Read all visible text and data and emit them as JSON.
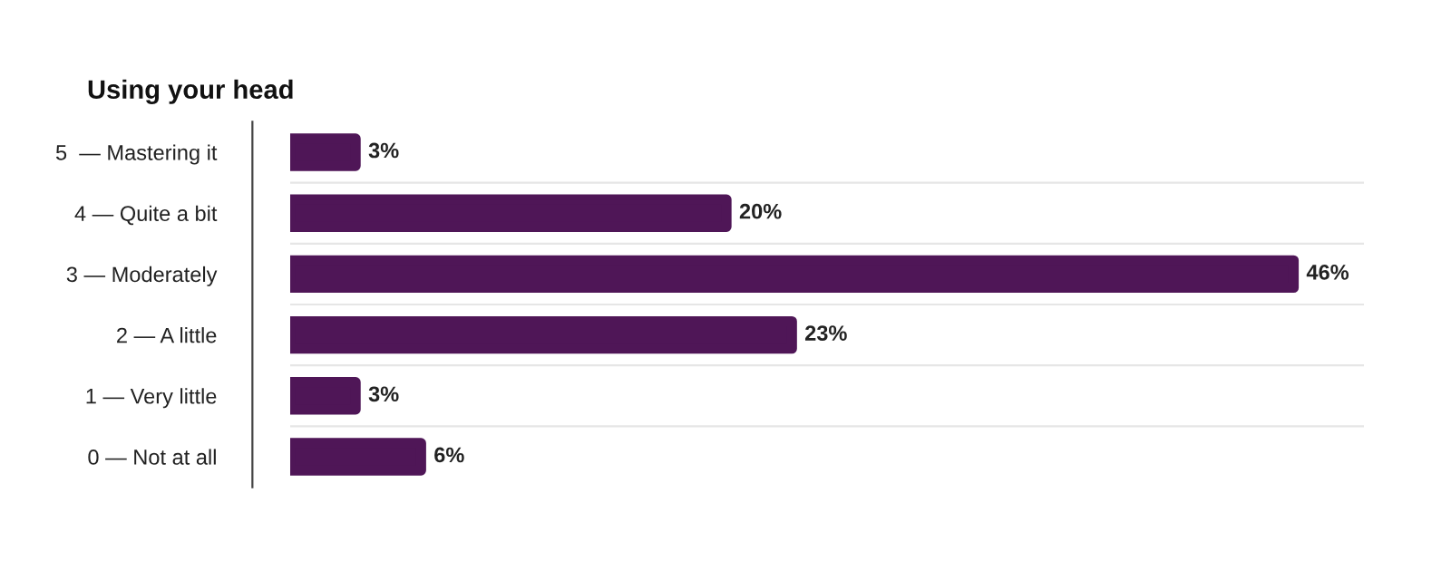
{
  "chart_data": {
    "type": "bar",
    "orientation": "horizontal",
    "title": "Using your head",
    "categories": [
      "5  — Mastering it",
      "4 — Quite a bit",
      "3 — Moderately",
      "2 — A little",
      "1 — Very little",
      "0 — Not at all"
    ],
    "values": [
      3,
      20,
      46,
      23,
      3,
      6
    ],
    "value_labels": [
      "3%",
      "20%",
      "46%",
      "23%",
      "3%",
      "6%"
    ],
    "color": "#4f1657",
    "grid": "y",
    "legend": false
  }
}
